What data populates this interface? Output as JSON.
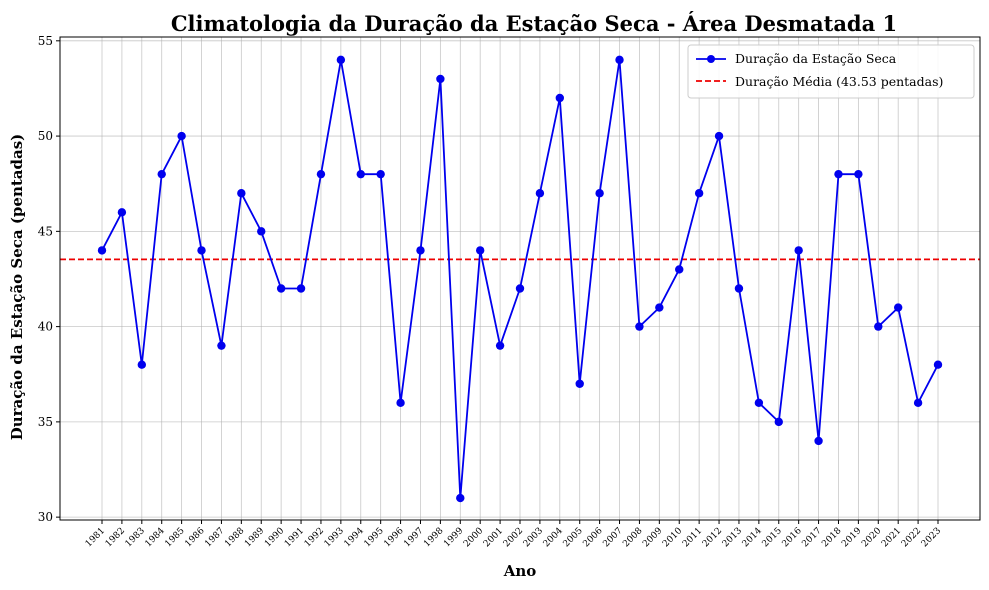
{
  "chart_data": {
    "type": "line",
    "title": "Climatologia da Duração da Estação Seca - Área Desmatada 1",
    "xlabel": "Ano",
    "ylabel": "Duração da Estação Seca (pentadas)",
    "categories": [
      "1981",
      "1982",
      "1983",
      "1984",
      "1985",
      "1986",
      "1987",
      "1988",
      "1989",
      "1990",
      "1991",
      "1992",
      "1993",
      "1994",
      "1995",
      "1996",
      "1997",
      "1998",
      "1999",
      "2000",
      "2001",
      "2002",
      "2003",
      "2004",
      "2005",
      "2006",
      "2007",
      "2008",
      "2009",
      "2010",
      "2011",
      "2012",
      "2013",
      "2014",
      "2015",
      "2016",
      "2017",
      "2018",
      "2019",
      "2020",
      "2021",
      "2022",
      "2023"
    ],
    "series": [
      {
        "name": "Duração da Estação Seca",
        "color": "#0000ee",
        "marker": "circle",
        "values": [
          44,
          46,
          38,
          48,
          50,
          44,
          39,
          47,
          45,
          42,
          42,
          48,
          54,
          48,
          48,
          36,
          44,
          53,
          31,
          44,
          39,
          42,
          47,
          52,
          37,
          47,
          54,
          40,
          41,
          43,
          47,
          50,
          42,
          36,
          35,
          44,
          34,
          48,
          48,
          40,
          41,
          36,
          38
        ]
      }
    ],
    "reference_line": {
      "name": "Duração Média (43.53 pentadas)",
      "value": 43.53,
      "color": "#ee0000",
      "style": "dashed"
    },
    "yticks": [
      30,
      35,
      40,
      45,
      50,
      55
    ],
    "ylim": [
      29.85,
      55.2
    ],
    "grid": true,
    "legend_position": "top-right"
  }
}
